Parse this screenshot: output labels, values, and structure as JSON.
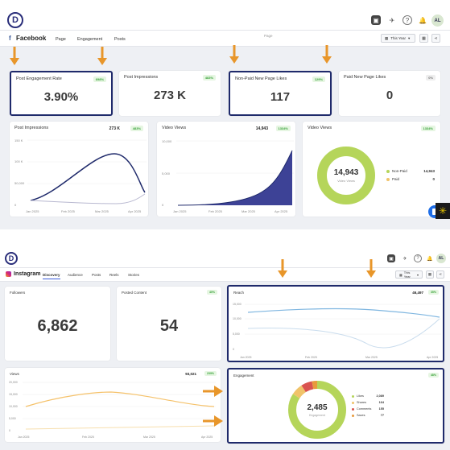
{
  "facebook": {
    "logo_letter": "D",
    "brand": "Facebook",
    "brand_icon": "f",
    "tabs": [
      "Page",
      "Engagement",
      "Posts"
    ],
    "page_placeholder": "Page",
    "range": "This Year",
    "avatar": "AL",
    "kpis": [
      {
        "title": "Post Engagement Rate",
        "value": "3.90%",
        "badge": "698%",
        "highlighted": true
      },
      {
        "title": "Post Impressions",
        "value": "273 K",
        "badge": "483%",
        "highlighted": false
      },
      {
        "title": "Non-Paid New Page Likes",
        "value": "117",
        "badge": "129%",
        "highlighted": true
      },
      {
        "title": "Paid New Page Likes",
        "value": "0",
        "badge": "0%",
        "highlighted": false
      }
    ],
    "impressions_chart": {
      "title": "Post Impressions",
      "value": "273 K",
      "badge": "483%",
      "yticks": [
        "150 K",
        "100 K",
        "50,000",
        "0"
      ],
      "xticks": [
        "Jan 2025",
        "Feb 2025",
        "Mar 2025",
        "Apr 2025"
      ]
    },
    "video_chart": {
      "title": "Video Views",
      "value": "14,943",
      "badge": "1334%",
      "yticks": [
        "10,000",
        "5,000",
        "0"
      ],
      "xticks": [
        "Jan 2025",
        "Feb 2025",
        "Mar 2025",
        "Apr 2025"
      ]
    },
    "video_donut": {
      "title": "Video Views",
      "badge": "1334%",
      "center_value": "14,943",
      "center_label": "Video Views",
      "legend": [
        {
          "label": "Non-Paid",
          "value": "14,943",
          "color": "#b5d55a"
        },
        {
          "label": "Paid",
          "value": "0",
          "color": "#f0c36a"
        }
      ]
    }
  },
  "instagram": {
    "logo_letter": "D",
    "brand": "Instagram",
    "tabs": [
      "Discovery",
      "Audience",
      "Posts",
      "Reels",
      "Stories"
    ],
    "active_tab": "Discovery",
    "range": "This Year",
    "avatar": "AL",
    "followers": {
      "title": "Followers",
      "value": "6,862"
    },
    "posted_content": {
      "title": "Posted Content",
      "value": "54",
      "badge": "40%"
    },
    "reach": {
      "title": "Reach",
      "value": "46,497",
      "badge": "35%",
      "yticks": [
        "15,000",
        "10,000",
        "5,000",
        "0"
      ],
      "xticks": [
        "Jan 2025",
        "Feb 2025",
        "Mar 2025",
        "Apr 2025"
      ]
    },
    "views": {
      "title": "Views",
      "value": "93,021",
      "badge": "239%",
      "yticks": [
        "20,000",
        "15,000",
        "10,000",
        "5,000",
        "0"
      ],
      "xticks": [
        "Jan 2025",
        "Feb 2025",
        "Mar 2025",
        "Apr 2025"
      ]
    },
    "engagement": {
      "title": "Engagement",
      "badge": "48%",
      "center_value": "2,485",
      "center_label": "Engagement",
      "legend": [
        {
          "label": "Likes",
          "value": "2,089",
          "color": "#b5d55a"
        },
        {
          "label": "Shares",
          "value": "164",
          "color": "#f0c36a"
        },
        {
          "label": "Comments",
          "value": "155",
          "color": "#d9534f"
        },
        {
          "label": "Saves",
          "value": "77",
          "color": "#e89a3c"
        }
      ]
    }
  },
  "colors": {
    "arrow": "#e8962a",
    "highlight": "#1f2a6b",
    "line_dark": "#1f2a6b",
    "area": "#3d4296"
  }
}
